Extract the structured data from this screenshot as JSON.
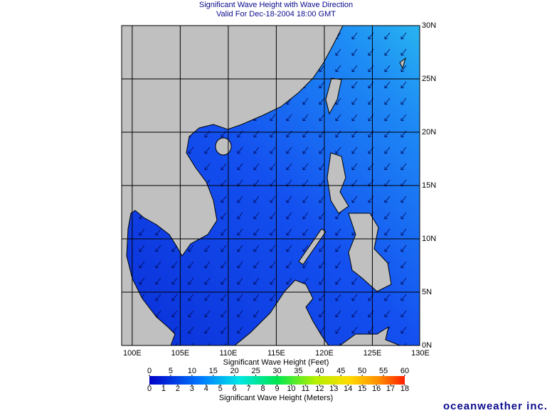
{
  "header": {
    "title": "Significant Wave Height with Wave Direction",
    "subtitle": "Valid For Dec-18-2004 18:00 GMT"
  },
  "map": {
    "lonlim": [
      98.9,
      130
    ],
    "latlim": [
      0,
      30
    ],
    "lon_ticks": [
      {
        "value": 100,
        "label": "100E"
      },
      {
        "value": 105,
        "label": "105E"
      },
      {
        "value": 110,
        "label": "110E"
      },
      {
        "value": 115,
        "label": "115E"
      },
      {
        "value": 120,
        "label": "120E"
      },
      {
        "value": 125,
        "label": "125E"
      },
      {
        "value": 130,
        "label": "130E"
      }
    ],
    "lat_ticks": [
      {
        "value": 0,
        "label": "0N"
      },
      {
        "value": 5,
        "label": "5N"
      },
      {
        "value": 10,
        "label": "10N"
      },
      {
        "value": 15,
        "label": "15N"
      },
      {
        "value": 20,
        "label": "20N"
      },
      {
        "value": 25,
        "label": "25N"
      },
      {
        "value": 30,
        "label": "30N"
      }
    ]
  },
  "colorbar": {
    "feet_label": "Significant Wave Height (Feet)",
    "feet_lim": [
      0,
      60
    ],
    "feet_ticks": [
      0,
      5,
      10,
      15,
      20,
      25,
      30,
      35,
      40,
      45,
      50,
      55,
      60
    ],
    "meters_label": "Significant Wave Height (Meters)",
    "meters_lim": [
      0,
      18
    ],
    "meters_ticks": [
      0,
      1,
      2,
      3,
      4,
      5,
      6,
      7,
      8,
      9,
      10,
      11,
      12,
      13,
      14,
      15,
      16,
      17,
      18
    ]
  },
  "brand": "oceanweather inc."
}
